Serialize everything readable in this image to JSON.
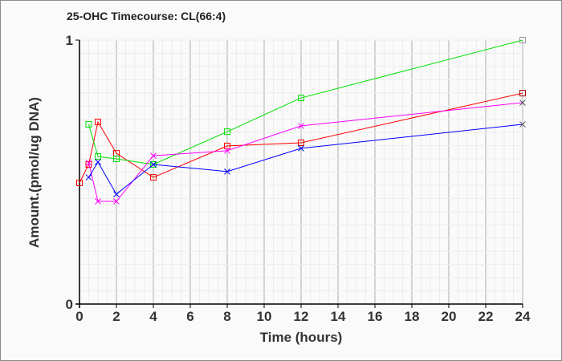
{
  "chart_data": {
    "type": "line",
    "title": "25-OHC Timecourse: CL(66:4)",
    "xlabel": "Time (hours)",
    "ylabel": "Amount.(pmol/ug DNA)",
    "xlim": [
      0,
      24
    ],
    "ylim": [
      0,
      1
    ],
    "xticks": [
      "0",
      "2",
      "4",
      "6",
      "8",
      "10",
      "12",
      "14",
      "16",
      "18",
      "20",
      "22",
      "24"
    ],
    "yticks": [
      "0",
      "1"
    ],
    "grid": true,
    "series": [
      {
        "name": "red",
        "color": "#ff0000",
        "marker": "square",
        "x": [
          0,
          0.5,
          1,
          2,
          4,
          8,
          12,
          24
        ],
        "y": [
          0.459,
          0.529,
          0.69,
          0.571,
          0.48,
          0.599,
          0.611,
          0.799
        ]
      },
      {
        "name": "green",
        "color": "#00e000",
        "marker": "square",
        "x": [
          0.5,
          1,
          2,
          4,
          8,
          12,
          24
        ],
        "y": [
          0.681,
          0.559,
          0.55,
          0.529,
          0.653,
          0.781,
          1.0
        ]
      },
      {
        "name": "magenta",
        "color": "#ff00ff",
        "marker": "x",
        "x": [
          0.5,
          1,
          2,
          4,
          8,
          12,
          24
        ],
        "y": [
          0.535,
          0.389,
          0.389,
          0.562,
          0.581,
          0.675,
          0.763
        ]
      },
      {
        "name": "blue",
        "color": "#0000ff",
        "marker": "x",
        "x": [
          0.5,
          1,
          2,
          4,
          8,
          12,
          24
        ],
        "y": [
          0.48,
          0.538,
          0.416,
          0.529,
          0.502,
          0.59,
          0.681
        ]
      }
    ]
  }
}
